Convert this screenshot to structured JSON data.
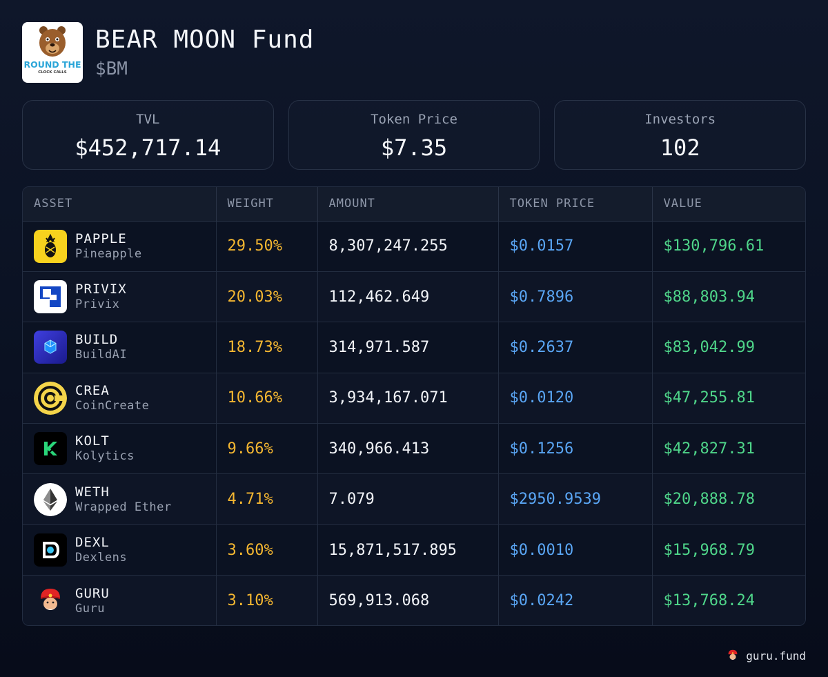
{
  "fund": {
    "name": "BEAR MOON Fund",
    "ticker": "$BM",
    "logo": {
      "text_top": "ROUND THE",
      "text_bottom": "CLOCK CALLS",
      "icon": "bear-mascot-icon"
    }
  },
  "stats": [
    {
      "label": "TVL",
      "value": "$452,717.14"
    },
    {
      "label": "Token Price",
      "value": "$7.35"
    },
    {
      "label": "Investors",
      "value": "102"
    }
  ],
  "table": {
    "headers": [
      "ASSET",
      "WEIGHT",
      "AMOUNT",
      "TOKEN PRICE",
      "VALUE"
    ],
    "rows": [
      {
        "symbol": "PAPPLE",
        "name": "Pineapple",
        "weight": "29.50%",
        "amount": "8,307,247.255",
        "price": "$0.0157",
        "value": "$130,796.61",
        "icon": "pineapple-icon"
      },
      {
        "symbol": "PRIVIX",
        "name": "Privix",
        "weight": "20.03%",
        "amount": "112,462.649",
        "price": "$0.7896",
        "value": "$88,803.94",
        "icon": "privix-logo-icon"
      },
      {
        "symbol": "BUILD",
        "name": "BuildAI",
        "weight": "18.73%",
        "amount": "314,971.587",
        "price": "$0.2637",
        "value": "$83,042.99",
        "icon": "buildai-cube-icon"
      },
      {
        "symbol": "CREA",
        "name": "CoinCreate",
        "weight": "10.66%",
        "amount": "3,934,167.071",
        "price": "$0.0120",
        "value": "$47,255.81",
        "icon": "coincreate-icon"
      },
      {
        "symbol": "KOLT",
        "name": "Kolytics",
        "weight": "9.66%",
        "amount": "340,966.413",
        "price": "$0.1256",
        "value": "$42,827.31",
        "icon": "kolytics-icon"
      },
      {
        "symbol": "WETH",
        "name": "Wrapped Ether",
        "weight": "4.71%",
        "amount": "7.079",
        "price": "$2950.9539",
        "value": "$20,888.78",
        "icon": "ethereum-icon"
      },
      {
        "symbol": "DEXL",
        "name": "Dexlens",
        "weight": "3.60%",
        "amount": "15,871,517.895",
        "price": "$0.0010",
        "value": "$15,968.79",
        "icon": "dexlens-icon"
      },
      {
        "symbol": "GURU",
        "name": "Guru",
        "weight": "3.10%",
        "amount": "569,913.068",
        "price": "$0.0242",
        "value": "$13,768.24",
        "icon": "guru-avatar-icon"
      }
    ]
  },
  "footer": {
    "text": "guru.fund",
    "icon": "guru-avatar-icon"
  },
  "colors": {
    "background": "#0a1122",
    "weight": "#f5b731",
    "price": "#5aa6f5",
    "value": "#4fd68a"
  }
}
